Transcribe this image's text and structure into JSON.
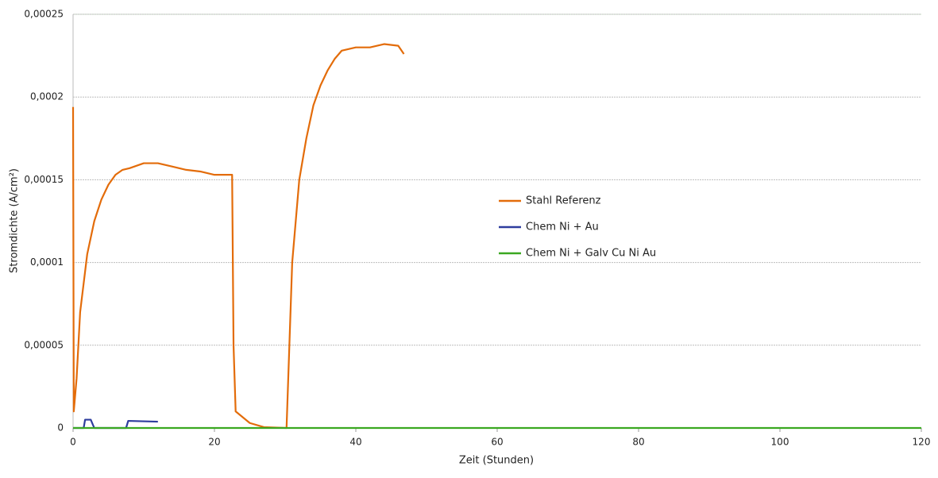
{
  "chart_data": {
    "type": "line",
    "xlabel": "Zeit (Stunden)",
    "ylabel": "Stromdichte (A/cm²)",
    "xlim": [
      0,
      120
    ],
    "xticks": [
      0,
      20,
      40,
      60,
      80,
      100,
      120
    ],
    "ylim": [
      0,
      0.00025
    ],
    "yticks": [
      0,
      {
        "value": 5e-05,
        "label": "0,00005"
      },
      {
        "value": 0.0001,
        "label": "0,0001"
      },
      {
        "value": 0.00015,
        "label": "0,00015"
      },
      {
        "value": 0.0002,
        "label": "0,0002"
      },
      {
        "value": 0.00025,
        "label": "0,00025"
      }
    ],
    "grid": true,
    "series": [
      {
        "name": "Stahl Referenz",
        "color": "#e36c0a",
        "x": [
          0,
          0.1,
          0.5,
          1,
          2,
          3,
          4,
          5,
          6,
          7,
          8,
          10,
          12,
          14,
          16,
          18,
          20,
          22.5,
          22.7,
          23,
          25,
          27,
          30.2,
          31,
          32,
          33,
          34,
          35,
          36,
          37,
          38,
          40,
          42,
          44,
          46,
          46.8
        ],
        "values": [
          0.000194,
          1e-05,
          3e-05,
          7e-05,
          0.000105,
          0.000125,
          0.000138,
          0.000147,
          0.000153,
          0.000156,
          0.000157,
          0.00016,
          0.00016,
          0.000158,
          0.000156,
          0.000155,
          0.000153,
          0.000153,
          5e-05,
          1e-05,
          3e-06,
          5e-07,
          0,
          0.0001,
          0.00015,
          0.000175,
          0.000195,
          0.000207,
          0.000216,
          0.000223,
          0.000228,
          0.00023,
          0.00023,
          0.000232,
          0.000231,
          0.000226
        ]
      },
      {
        "name": "Chem Ni + Au",
        "color": "#2e3d9e",
        "x": [
          0,
          1.5,
          1.7,
          2.5,
          3,
          7.5,
          7.8,
          12
        ],
        "values": [
          0,
          0,
          5e-06,
          5e-06,
          0,
          0,
          4.3e-06,
          3.8e-06
        ]
      },
      {
        "name": "Chem Ni + Galv Cu Ni Au",
        "color": "#3aa821",
        "x": [
          0,
          120
        ],
        "values": [
          0,
          0
        ]
      }
    ]
  }
}
